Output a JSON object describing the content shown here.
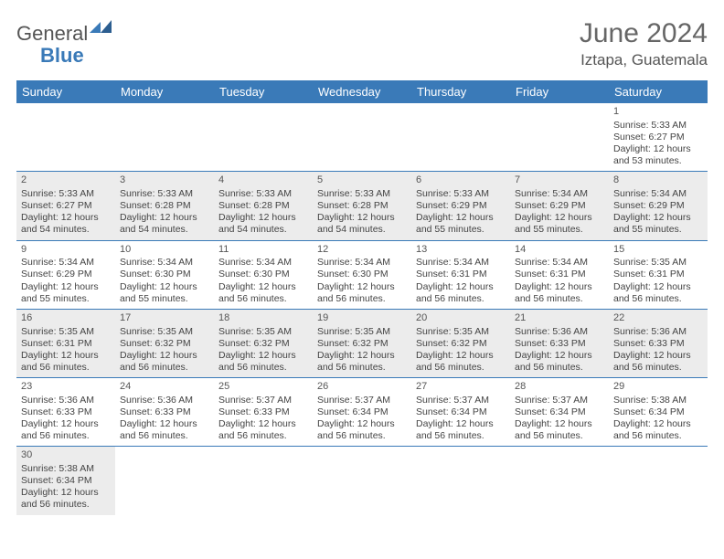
{
  "logo": {
    "part1": "General",
    "part2": "Blue"
  },
  "title": "June 2024",
  "location": "Iztapa, Guatemala",
  "colors": {
    "header_bg": "#3a7ab8",
    "alt_bg": "#ececec",
    "text": "#444444",
    "title_color": "#666666"
  },
  "day_names": [
    "Sunday",
    "Monday",
    "Tuesday",
    "Wednesday",
    "Thursday",
    "Friday",
    "Saturday"
  ],
  "weeks": [
    [
      null,
      null,
      null,
      null,
      null,
      null,
      {
        "n": "1",
        "sr": "Sunrise: 5:33 AM",
        "ss": "Sunset: 6:27 PM",
        "dl": "Daylight: 12 hours and 53 minutes."
      }
    ],
    [
      {
        "n": "2",
        "sr": "Sunrise: 5:33 AM",
        "ss": "Sunset: 6:27 PM",
        "dl": "Daylight: 12 hours and 54 minutes."
      },
      {
        "n": "3",
        "sr": "Sunrise: 5:33 AM",
        "ss": "Sunset: 6:28 PM",
        "dl": "Daylight: 12 hours and 54 minutes."
      },
      {
        "n": "4",
        "sr": "Sunrise: 5:33 AM",
        "ss": "Sunset: 6:28 PM",
        "dl": "Daylight: 12 hours and 54 minutes."
      },
      {
        "n": "5",
        "sr": "Sunrise: 5:33 AM",
        "ss": "Sunset: 6:28 PM",
        "dl": "Daylight: 12 hours and 54 minutes."
      },
      {
        "n": "6",
        "sr": "Sunrise: 5:33 AM",
        "ss": "Sunset: 6:29 PM",
        "dl": "Daylight: 12 hours and 55 minutes."
      },
      {
        "n": "7",
        "sr": "Sunrise: 5:34 AM",
        "ss": "Sunset: 6:29 PM",
        "dl": "Daylight: 12 hours and 55 minutes."
      },
      {
        "n": "8",
        "sr": "Sunrise: 5:34 AM",
        "ss": "Sunset: 6:29 PM",
        "dl": "Daylight: 12 hours and 55 minutes."
      }
    ],
    [
      {
        "n": "9",
        "sr": "Sunrise: 5:34 AM",
        "ss": "Sunset: 6:29 PM",
        "dl": "Daylight: 12 hours and 55 minutes."
      },
      {
        "n": "10",
        "sr": "Sunrise: 5:34 AM",
        "ss": "Sunset: 6:30 PM",
        "dl": "Daylight: 12 hours and 55 minutes."
      },
      {
        "n": "11",
        "sr": "Sunrise: 5:34 AM",
        "ss": "Sunset: 6:30 PM",
        "dl": "Daylight: 12 hours and 56 minutes."
      },
      {
        "n": "12",
        "sr": "Sunrise: 5:34 AM",
        "ss": "Sunset: 6:30 PM",
        "dl": "Daylight: 12 hours and 56 minutes."
      },
      {
        "n": "13",
        "sr": "Sunrise: 5:34 AM",
        "ss": "Sunset: 6:31 PM",
        "dl": "Daylight: 12 hours and 56 minutes."
      },
      {
        "n": "14",
        "sr": "Sunrise: 5:34 AM",
        "ss": "Sunset: 6:31 PM",
        "dl": "Daylight: 12 hours and 56 minutes."
      },
      {
        "n": "15",
        "sr": "Sunrise: 5:35 AM",
        "ss": "Sunset: 6:31 PM",
        "dl": "Daylight: 12 hours and 56 minutes."
      }
    ],
    [
      {
        "n": "16",
        "sr": "Sunrise: 5:35 AM",
        "ss": "Sunset: 6:31 PM",
        "dl": "Daylight: 12 hours and 56 minutes."
      },
      {
        "n": "17",
        "sr": "Sunrise: 5:35 AM",
        "ss": "Sunset: 6:32 PM",
        "dl": "Daylight: 12 hours and 56 minutes."
      },
      {
        "n": "18",
        "sr": "Sunrise: 5:35 AM",
        "ss": "Sunset: 6:32 PM",
        "dl": "Daylight: 12 hours and 56 minutes."
      },
      {
        "n": "19",
        "sr": "Sunrise: 5:35 AM",
        "ss": "Sunset: 6:32 PM",
        "dl": "Daylight: 12 hours and 56 minutes."
      },
      {
        "n": "20",
        "sr": "Sunrise: 5:35 AM",
        "ss": "Sunset: 6:32 PM",
        "dl": "Daylight: 12 hours and 56 minutes."
      },
      {
        "n": "21",
        "sr": "Sunrise: 5:36 AM",
        "ss": "Sunset: 6:33 PM",
        "dl": "Daylight: 12 hours and 56 minutes."
      },
      {
        "n": "22",
        "sr": "Sunrise: 5:36 AM",
        "ss": "Sunset: 6:33 PM",
        "dl": "Daylight: 12 hours and 56 minutes."
      }
    ],
    [
      {
        "n": "23",
        "sr": "Sunrise: 5:36 AM",
        "ss": "Sunset: 6:33 PM",
        "dl": "Daylight: 12 hours and 56 minutes."
      },
      {
        "n": "24",
        "sr": "Sunrise: 5:36 AM",
        "ss": "Sunset: 6:33 PM",
        "dl": "Daylight: 12 hours and 56 minutes."
      },
      {
        "n": "25",
        "sr": "Sunrise: 5:37 AM",
        "ss": "Sunset: 6:33 PM",
        "dl": "Daylight: 12 hours and 56 minutes."
      },
      {
        "n": "26",
        "sr": "Sunrise: 5:37 AM",
        "ss": "Sunset: 6:34 PM",
        "dl": "Daylight: 12 hours and 56 minutes."
      },
      {
        "n": "27",
        "sr": "Sunrise: 5:37 AM",
        "ss": "Sunset: 6:34 PM",
        "dl": "Daylight: 12 hours and 56 minutes."
      },
      {
        "n": "28",
        "sr": "Sunrise: 5:37 AM",
        "ss": "Sunset: 6:34 PM",
        "dl": "Daylight: 12 hours and 56 minutes."
      },
      {
        "n": "29",
        "sr": "Sunrise: 5:38 AM",
        "ss": "Sunset: 6:34 PM",
        "dl": "Daylight: 12 hours and 56 minutes."
      }
    ],
    [
      {
        "n": "30",
        "sr": "Sunrise: 5:38 AM",
        "ss": "Sunset: 6:34 PM",
        "dl": "Daylight: 12 hours and 56 minutes."
      },
      null,
      null,
      null,
      null,
      null,
      null
    ]
  ]
}
